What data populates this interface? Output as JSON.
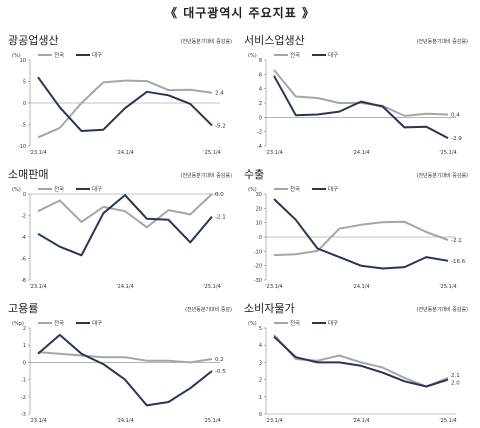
{
  "page": {
    "title": "《 대구광역시 주요지표 》"
  },
  "legend": {
    "nation": "전국",
    "daegu": "대구"
  },
  "colors": {
    "nation": "#a6a6a6",
    "daegu": "#2a3556",
    "axis": "#888888"
  },
  "chart_data": [
    {
      "type": "line",
      "title": "광공업생산",
      "note": "(전년동분기대비 증감률)",
      "unit": "(%)",
      "ylim": [
        -10,
        10
      ],
      "yticks": [
        -10,
        -5,
        0,
        5,
        10
      ],
      "x_labels": [
        "'23.1/4",
        "'24.1/4",
        "'25.1/4"
      ],
      "series": [
        {
          "name": "전국",
          "values": [
            -8,
            -5.8,
            0,
            4.8,
            5.2,
            5.1,
            3.0,
            3.1,
            2.4
          ],
          "end_label": "2.4"
        },
        {
          "name": "대구",
          "values": [
            6,
            -1,
            -6.5,
            -6.2,
            -1.2,
            2.6,
            1.8,
            -0.2,
            -5.2
          ],
          "end_label": "-5.2"
        }
      ]
    },
    {
      "type": "line",
      "title": "서비스업생산",
      "note": "(전년동분기대비 증감률)",
      "unit": "(%)",
      "ylim": [
        -4,
        8
      ],
      "yticks": [
        -4,
        -2,
        0,
        2,
        4,
        6,
        8
      ],
      "x_labels": [
        "'23.1/4",
        "'24.1/4",
        "'25.1/4"
      ],
      "series": [
        {
          "name": "전국",
          "values": [
            6.6,
            2.9,
            2.7,
            2.0,
            2.0,
            1.6,
            0.2,
            0.5,
            0.4
          ],
          "end_label": "0.4"
        },
        {
          "name": "대구",
          "values": [
            5.8,
            0.3,
            0.4,
            0.8,
            2.2,
            1.5,
            -1.4,
            -1.3,
            -2.9
          ],
          "end_label": "-2.9"
        }
      ]
    },
    {
      "type": "line",
      "title": "소매판매",
      "note": "(전년동분기대비 증감률)",
      "unit": "(%)",
      "ylim": [
        -8,
        0
      ],
      "yticks": [
        -8,
        -6,
        -4,
        -2,
        0
      ],
      "x_labels": [
        "'23.1/4",
        "'24.1/4",
        "'25.1/4"
      ],
      "series": [
        {
          "name": "전국",
          "values": [
            -1.6,
            -0.6,
            -2.6,
            -1.2,
            -1.6,
            -3.1,
            -1.5,
            -1.9,
            0.0
          ],
          "end_label": "0.0"
        },
        {
          "name": "대구",
          "values": [
            -3.7,
            -4.9,
            -5.7,
            -1.8,
            -0.1,
            -2.3,
            -2.4,
            -4.5,
            -2.1
          ],
          "end_label": "-2.1"
        }
      ]
    },
    {
      "type": "line",
      "title": "수출",
      "note": "(전년동분기대비 증감률)",
      "unit": "(%)",
      "ylim": [
        -30,
        30
      ],
      "yticks": [
        -30,
        -20,
        -10,
        0,
        10,
        20,
        30
      ],
      "x_labels": [
        "'23.1/4",
        "'24.1/4",
        "'25.1/4"
      ],
      "series": [
        {
          "name": "전국",
          "values": [
            -12.6,
            -12,
            -9.7,
            5.8,
            8.5,
            10.3,
            10.6,
            3.5,
            -2.1
          ],
          "end_label": "-2.1"
        },
        {
          "name": "대구",
          "values": [
            26.5,
            12,
            -8,
            -14,
            -20,
            -22,
            -21,
            -14,
            -16.6
          ],
          "end_label": "-16.6"
        }
      ]
    },
    {
      "type": "line",
      "title": "고용률",
      "note": "(전년동분기대비 증감)",
      "unit": "(%p)",
      "ylim": [
        -3,
        2
      ],
      "yticks": [
        -3,
        -2,
        -1,
        0,
        1,
        2
      ],
      "x_labels": [
        "'23.1/4",
        "'24.1/4",
        "'25.1/4"
      ],
      "series": [
        {
          "name": "전국",
          "values": [
            0.6,
            0.5,
            0.4,
            0.3,
            0.3,
            0.1,
            0.1,
            0.0,
            0.2
          ],
          "end_label": "0.2"
        },
        {
          "name": "대구",
          "values": [
            0.5,
            1.6,
            0.5,
            -0.1,
            -1.0,
            -2.5,
            -2.3,
            -1.5,
            -0.5
          ],
          "end_label": "-0.5"
        }
      ]
    },
    {
      "type": "line",
      "title": "소비자물가",
      "note": "(전년동분기대비 증감률)",
      "unit": "(%)",
      "ylim": [
        0,
        5
      ],
      "yticks": [
        0,
        1,
        2,
        3,
        4,
        5
      ],
      "x_labels": [
        "'23.1/4",
        "'24.1/4",
        "'25.1/4"
      ],
      "series": [
        {
          "name": "전국",
          "values": [
            4.6,
            3.2,
            3.1,
            3.4,
            3.0,
            2.7,
            2.1,
            1.6,
            2.1
          ],
          "end_label": "2.1"
        },
        {
          "name": "대구",
          "values": [
            4.5,
            3.3,
            3.0,
            3.0,
            2.8,
            2.4,
            1.9,
            1.6,
            2.0
          ],
          "end_label": "2.0"
        }
      ]
    }
  ]
}
